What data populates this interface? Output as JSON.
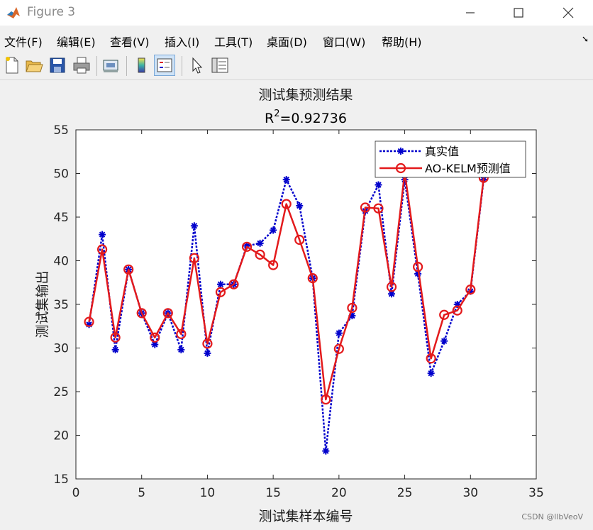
{
  "window": {
    "title": "Figure 3"
  },
  "menu": {
    "items": [
      "文件(F)",
      "编辑(E)",
      "查看(V)",
      "插入(I)",
      "工具(T)",
      "桌面(D)",
      "窗口(W)",
      "帮助(H)"
    ]
  },
  "toolbar": {
    "icons": [
      "new-file-icon",
      "open-folder-icon",
      "save-icon",
      "print-icon",
      "print-preview-icon",
      "colorbar-icon",
      "legend-icon",
      "pointer-icon",
      "property-editor-icon"
    ]
  },
  "watermark": "CSDN @llbVeoV",
  "chart_data": {
    "type": "line",
    "title": "测试集预测结果",
    "subtitle_prefix": "R",
    "subtitle_sup": "2",
    "subtitle_value": "=0.92736",
    "xlabel": "测试集样本编号",
    "ylabel": "测试集输出",
    "xlim": [
      0,
      35
    ],
    "ylim": [
      15,
      55
    ],
    "xticks": [
      0,
      5,
      10,
      15,
      20,
      25,
      30,
      35
    ],
    "yticks": [
      15,
      20,
      25,
      30,
      35,
      40,
      45,
      50,
      55
    ],
    "legend_position": "top-right",
    "x": [
      1,
      2,
      3,
      4,
      5,
      6,
      7,
      8,
      9,
      10,
      11,
      12,
      13,
      14,
      15,
      16,
      17,
      18,
      19,
      20,
      21,
      22,
      23,
      24,
      25,
      26,
      27,
      28,
      29,
      30,
      31
    ],
    "series": [
      {
        "name": "真实值",
        "color": "#0000cc",
        "line_style": "dotted",
        "marker": "asterisk",
        "values": [
          32.7,
          43.0,
          29.8,
          39.0,
          34.0,
          30.4,
          34.0,
          29.8,
          44.0,
          29.4,
          37.3,
          37.3,
          41.7,
          42.0,
          43.5,
          49.3,
          46.3,
          38.0,
          18.2,
          31.7,
          33.7,
          45.7,
          48.7,
          36.2,
          49.3,
          38.5,
          27.1,
          30.8,
          35.0,
          36.5,
          49.3
        ]
      },
      {
        "name": "AO-KELM预测值",
        "color": "#e31a1c",
        "line_style": "solid",
        "marker": "circle",
        "values": [
          33.0,
          41.3,
          31.2,
          39.0,
          34.0,
          31.2,
          34.0,
          31.6,
          40.3,
          30.5,
          36.4,
          37.3,
          41.6,
          40.7,
          39.5,
          46.5,
          42.4,
          38.0,
          24.1,
          29.9,
          34.6,
          46.1,
          46.0,
          37.0,
          50.1,
          39.3,
          28.8,
          33.8,
          34.3,
          36.7,
          49.5
        ]
      }
    ]
  }
}
